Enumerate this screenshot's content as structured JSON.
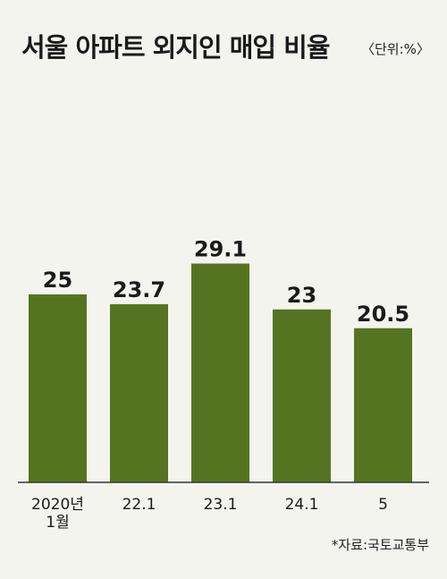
{
  "title": "서울 아파트 외지인 매입 비율",
  "unit": "〈단위:%〉",
  "source": "*자료:국토교통부",
  "colors": {
    "bar": "#557421",
    "background": "#f4f4ef",
    "baseline": "#333333"
  },
  "chart_data": {
    "type": "bar",
    "title": "서울 아파트 외지인 매입 비율",
    "unit": "%",
    "categories": [
      [
        "2020년",
        "1월"
      ],
      [
        "22.1"
      ],
      [
        "23.1"
      ],
      [
        "24.1"
      ],
      [
        "5"
      ]
    ],
    "values": [
      25,
      23.7,
      29.1,
      23,
      20.5
    ],
    "value_labels": [
      "25",
      "23.7",
      "29.1",
      "23",
      "20.5"
    ],
    "ylim": [
      0,
      46.3
    ],
    "grid": false,
    "legend": "none"
  }
}
